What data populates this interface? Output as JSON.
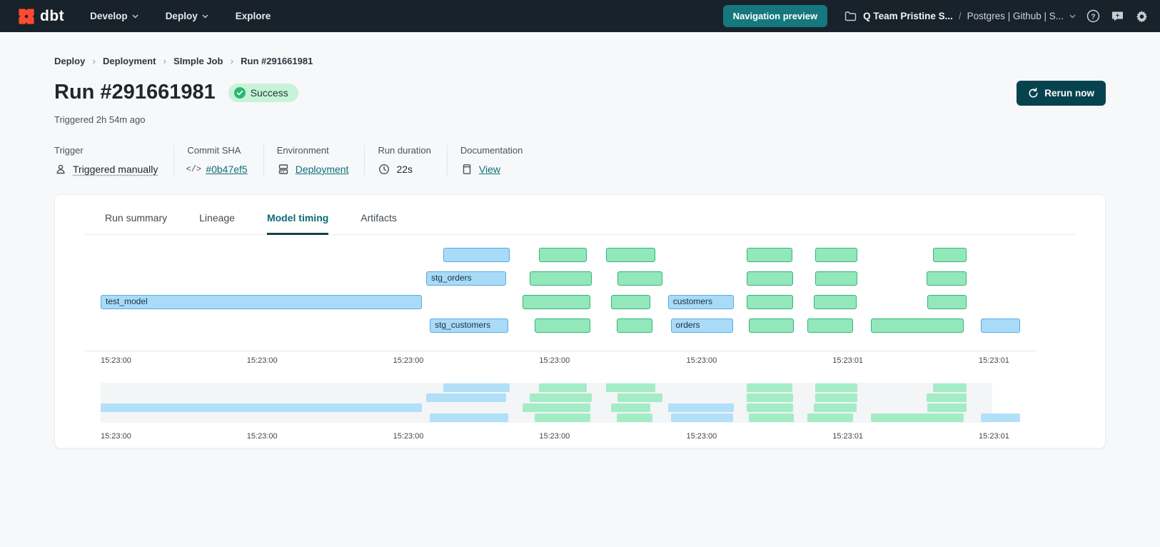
{
  "header": {
    "brand": "dbt",
    "nav": [
      {
        "label": "Develop"
      },
      {
        "label": "Deploy"
      },
      {
        "label": "Explore"
      }
    ],
    "preview_button": "Navigation preview",
    "workspace": "Q Team Pristine S...",
    "path_separator": "/",
    "project": "Postgres | Github | S...",
    "colors": {
      "header_bg": "#18222b",
      "preview_btn": "#15787f",
      "brand_orange": "#ff4a2f"
    }
  },
  "breadcrumb": {
    "items": [
      "Deploy",
      "Deployment",
      "SImple Job",
      "Run #291661981"
    ],
    "separator": "›"
  },
  "run": {
    "title": "Run #291661981",
    "status": "Success",
    "triggered": "Triggered 2h 54m ago",
    "rerun_label": "Rerun now",
    "status_colors": {
      "pill_bg": "#c9f2da",
      "icon": "#29b873",
      "text": "#163a2b"
    }
  },
  "meta": [
    {
      "label": "Trigger",
      "value": "Triggered manually",
      "icon": "person-icon",
      "style": "dotted"
    },
    {
      "label": "Commit SHA",
      "value": "#0b47ef5",
      "icon": "code-icon",
      "style": "link"
    },
    {
      "label": "Environment",
      "value": "Deployment",
      "icon": "database-icon",
      "style": "link"
    },
    {
      "label": "Run duration",
      "value": "22s",
      "icon": "clock-icon",
      "style": "plain"
    },
    {
      "label": "Documentation",
      "value": "View",
      "icon": "document-icon",
      "style": "link"
    }
  ],
  "tabs": [
    "Run summary",
    "Lineage",
    "Model timing",
    "Artifacts"
  ],
  "active_tab": "Model timing",
  "chart_data": {
    "type": "gantt",
    "title": "Model timing",
    "x_axis": "wall-clock time (HH:MM:SS)",
    "axis_labels": [
      {
        "text": "15:23:00",
        "x": 0
      },
      {
        "text": "15:23:00",
        "x": 15.9
      },
      {
        "text": "15:23:00",
        "x": 31.8
      },
      {
        "text": "15:23:00",
        "x": 47.7
      },
      {
        "text": "15:23:00",
        "x": 63.7
      },
      {
        "text": "15:23:01",
        "x": 79.6
      },
      {
        "text": "15:23:01",
        "x": 95.5
      }
    ],
    "colors": {
      "model_fill": "#a9dbf8",
      "model_border": "#57aade",
      "pass_fill": "#93e8bb",
      "pass_border": "#35b476",
      "mini_model_fill": "#b2e0f8",
      "mini_pass_fill": "#a4ecc6",
      "mini_bg": "#f3f5f7"
    },
    "rows": [
      [
        {
          "color": "blue",
          "start": 37.3,
          "end": 44.5
        },
        {
          "color": "green",
          "start": 47.7,
          "end": 52.9
        },
        {
          "color": "green",
          "start": 55.0,
          "end": 60.3
        },
        {
          "color": "green",
          "start": 70.3,
          "end": 75.2
        },
        {
          "color": "green",
          "start": 77.7,
          "end": 82.3
        },
        {
          "color": "green",
          "start": 90.5,
          "end": 94.2
        }
      ],
      [
        {
          "color": "blue",
          "start": 35.4,
          "end": 44.1,
          "label": "stg_orders"
        },
        {
          "color": "green",
          "start": 46.7,
          "end": 53.4
        },
        {
          "color": "green",
          "start": 56.2,
          "end": 61.1
        },
        {
          "color": "green",
          "start": 70.3,
          "end": 75.3
        },
        {
          "color": "green",
          "start": 77.7,
          "end": 82.3
        },
        {
          "color": "green",
          "start": 89.8,
          "end": 94.2
        }
      ],
      [
        {
          "color": "blue",
          "start": 0,
          "end": 34.9,
          "label": "test_model"
        },
        {
          "color": "green",
          "start": 45.9,
          "end": 53.3
        },
        {
          "color": "green",
          "start": 55.5,
          "end": 59.8
        },
        {
          "color": "blue",
          "start": 61.7,
          "end": 68.9,
          "label": "customers"
        },
        {
          "color": "green",
          "start": 70.3,
          "end": 75.3
        },
        {
          "color": "green",
          "start": 77.6,
          "end": 82.2
        },
        {
          "color": "green",
          "start": 89.9,
          "end": 94.2
        }
      ],
      [
        {
          "color": "blue",
          "start": 35.8,
          "end": 44.3,
          "label": "stg_customers"
        },
        {
          "color": "green",
          "start": 47.2,
          "end": 53.3
        },
        {
          "color": "green",
          "start": 56.1,
          "end": 60.0
        },
        {
          "color": "blue",
          "start": 62.0,
          "end": 68.8,
          "label": "orders"
        },
        {
          "color": "green",
          "start": 70.5,
          "end": 75.4
        },
        {
          "color": "green",
          "start": 76.9,
          "end": 81.8
        },
        {
          "color": "green",
          "start": 83.8,
          "end": 93.9
        },
        {
          "color": "blue",
          "start": 95.7,
          "end": 100
        }
      ]
    ]
  }
}
